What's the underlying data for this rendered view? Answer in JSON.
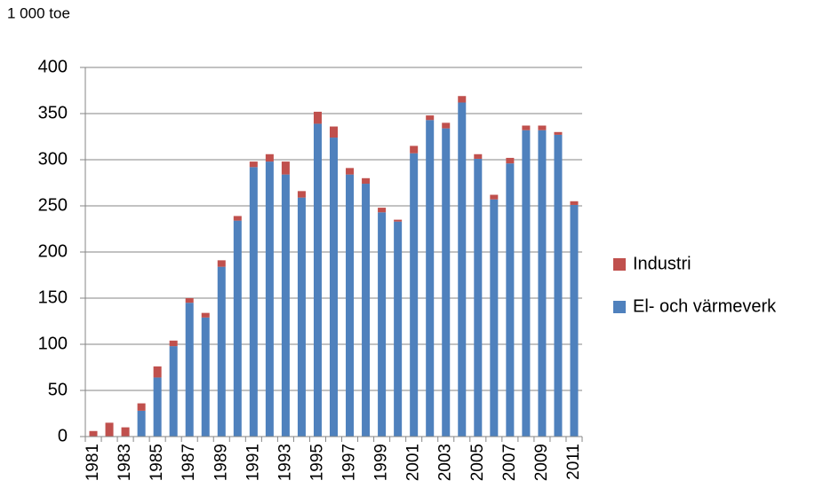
{
  "chart_data": {
    "type": "stacked_bar",
    "y_axis_label": "1 000 toe",
    "categories": [
      "1981",
      null,
      "1983",
      null,
      "1985",
      null,
      "1987",
      null,
      "1989",
      null,
      "1991",
      null,
      "1993",
      null,
      "1995",
      null,
      "1997",
      null,
      "1999",
      null,
      "2001",
      null,
      "2003",
      null,
      "2005",
      null,
      "2007",
      null,
      "2009",
      null,
      "2011"
    ],
    "series": [
      {
        "name": "El- och värmeverk",
        "color": "#4f81bd",
        "values": [
          0,
          0,
          0,
          28,
          64,
          98,
          145,
          129,
          184,
          234,
          292,
          298,
          284,
          259,
          339,
          324,
          284,
          274,
          243,
          233,
          307,
          343,
          334,
          362,
          301,
          257,
          296,
          332,
          332,
          327,
          251
        ]
      },
      {
        "name": "Industri",
        "color": "#c0504d",
        "values": [
          6,
          15,
          10,
          8,
          12,
          6,
          5,
          5,
          7,
          5,
          6,
          8,
          14,
          7,
          13,
          12,
          7,
          6,
          5,
          2,
          8,
          5,
          6,
          7,
          5,
          5,
          6,
          5,
          5,
          3,
          4
        ]
      }
    ],
    "ylim": [
      0,
      400
    ],
    "yticks": [
      0,
      50,
      100,
      150,
      200,
      250,
      300,
      350,
      400
    ],
    "grid": true,
    "legend": "right"
  }
}
